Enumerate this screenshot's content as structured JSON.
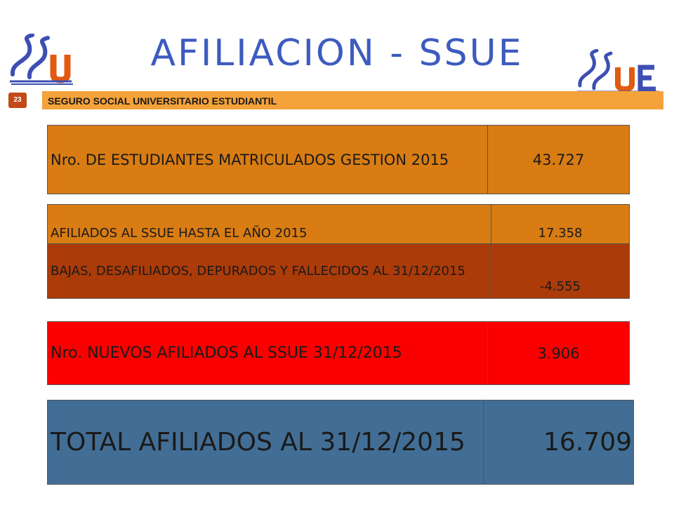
{
  "header": {
    "title": "AFILIACION - SSUE",
    "bar_text": "SEGURO SOCIAL UNIVERSITARIO ESTUDIANTIL",
    "page_number": "23"
  },
  "logos": [
    {
      "icon": "ssu-logo",
      "text": "SSU"
    },
    {
      "icon": "ssue-logo",
      "text": "SSUE"
    }
  ],
  "colors": {
    "title": "#3d5bbf",
    "bar": "#f4a23a",
    "page_badge": "#c24a16",
    "row_orange": "#d87c13",
    "row_brown": "#ab3b09",
    "row_red": "#fa0000",
    "row_blue": "#426e95"
  },
  "rows": {
    "matriculados": {
      "label": "Nro. DE ESTUDIANTES MATRICULADOS GESTION 2015",
      "value": "43.727"
    },
    "afiliados": {
      "label": "AFILIADOS AL SSUE HASTA EL AÑO 2015",
      "value": "17.358"
    },
    "bajas": {
      "label": "BAJAS, DESAFILIADOS, DEPURADOS Y FALLECIDOS AL 31/12/2015",
      "value": "-4.555"
    },
    "nuevos": {
      "label": "Nro. NUEVOS AFILIADOS AL SSUE 31/12/2015",
      "value": "3.906"
    },
    "total": {
      "label": "TOTAL AFILIADOS AL 31/12/2015",
      "value": "16.709"
    }
  }
}
